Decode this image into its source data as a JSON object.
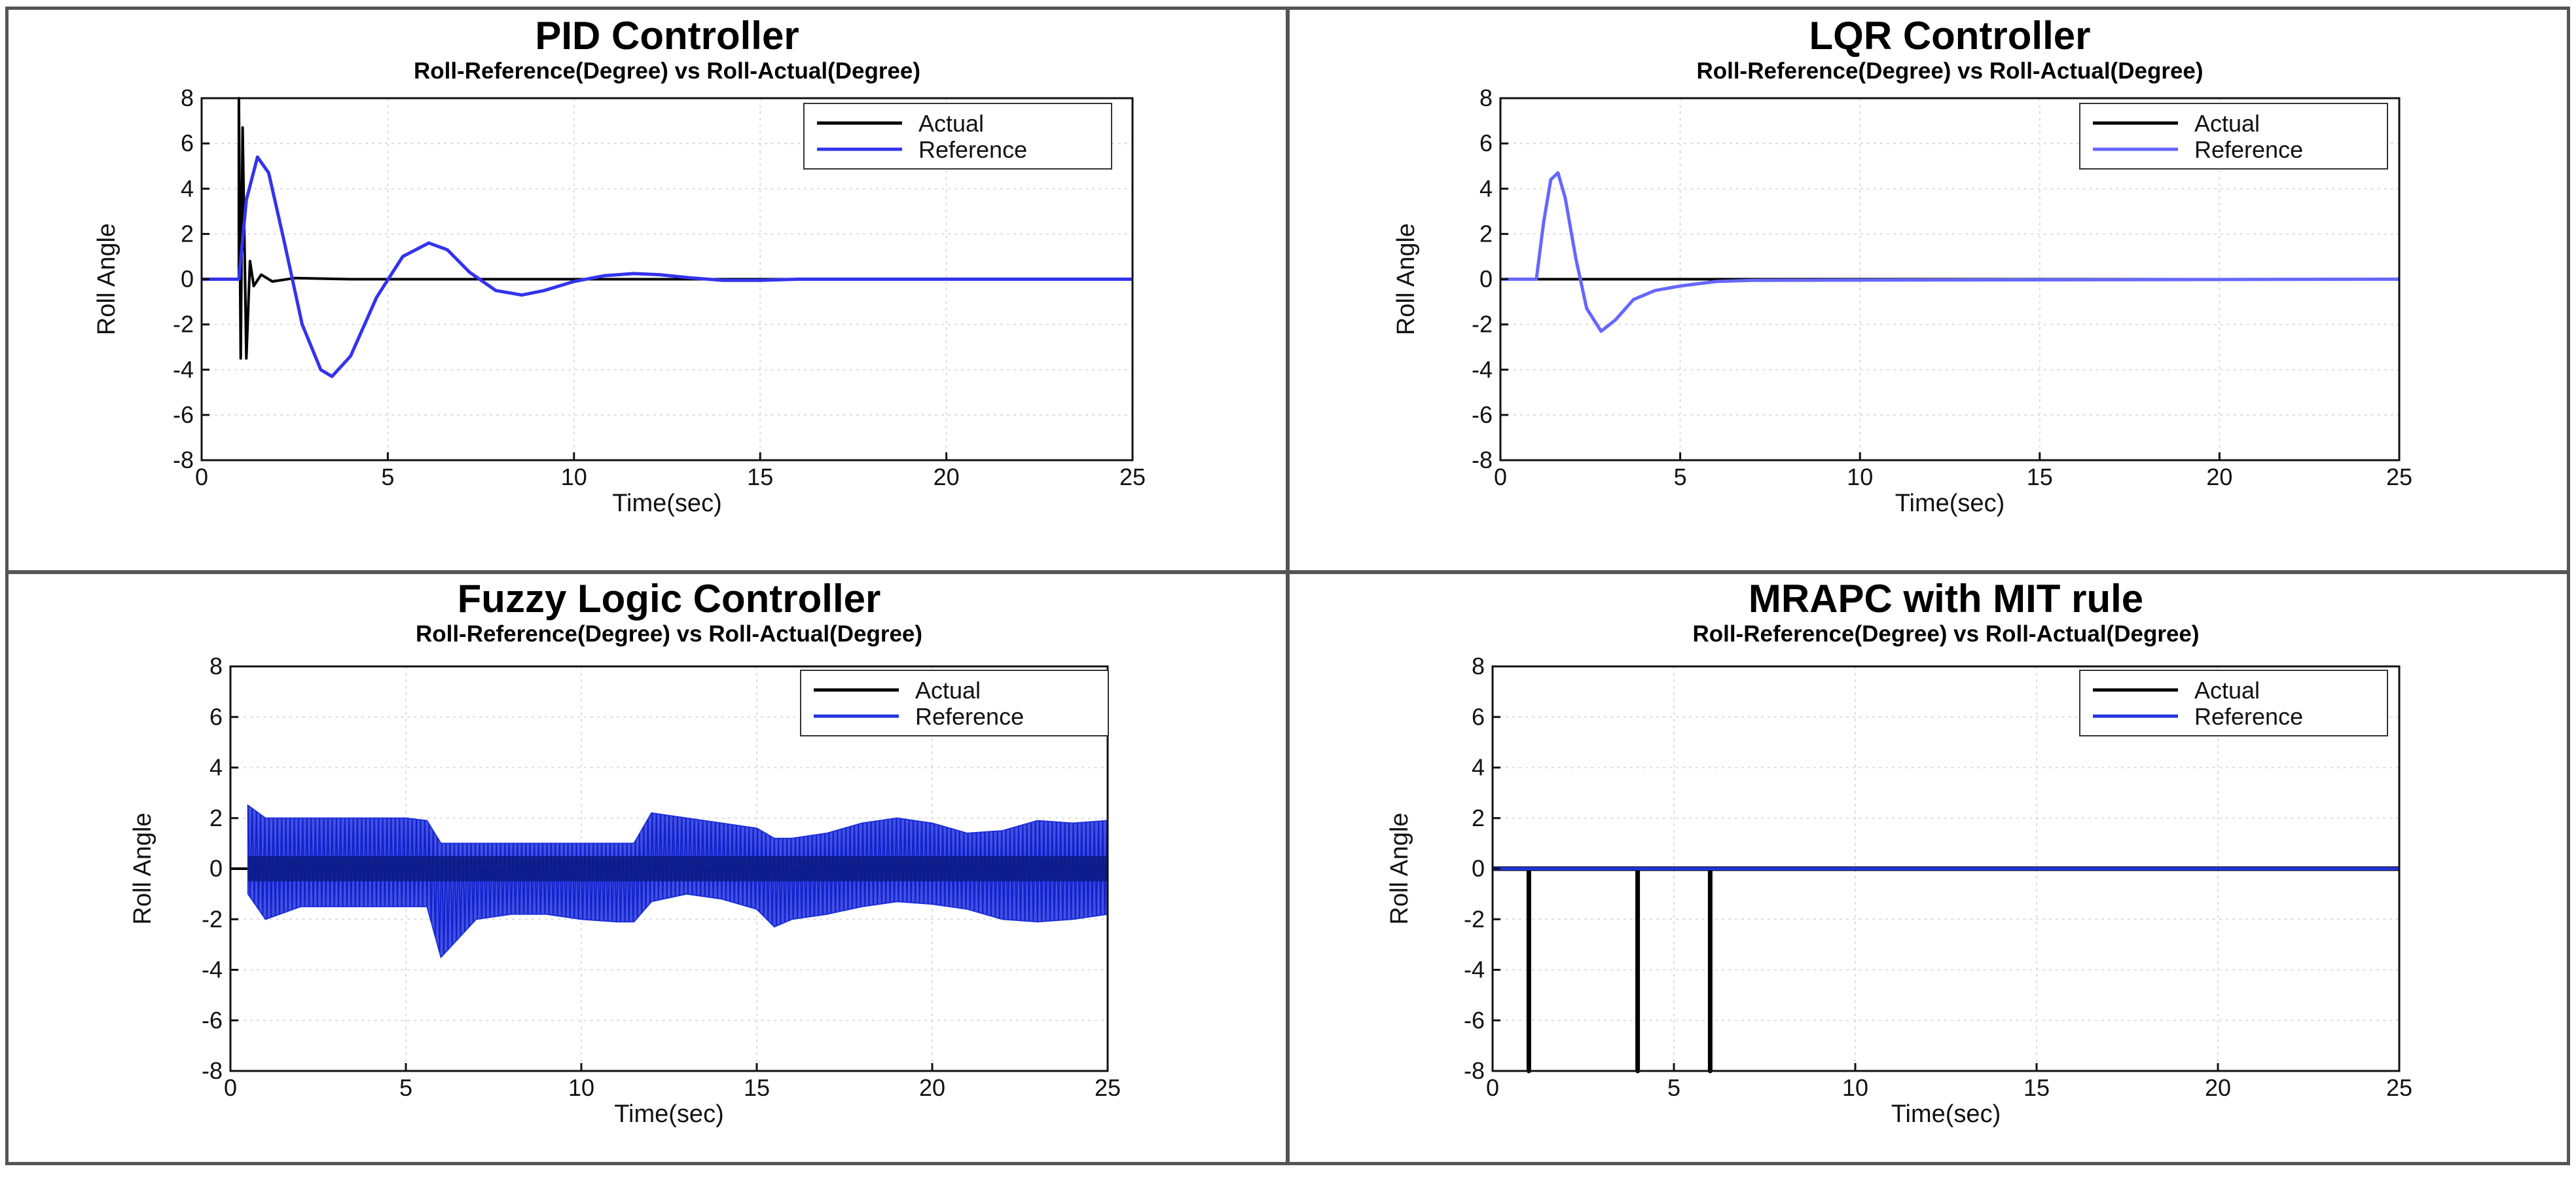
{
  "chart_data": [
    {
      "id": "pid",
      "type": "line",
      "title": "PID Controller",
      "subtitle": "Roll-Reference(Degree) vs Roll-Actual(Degree)",
      "xlabel": "Time(sec)",
      "ylabel": "Roll Angle",
      "xlim": [
        0,
        25
      ],
      "ylim": [
        -8,
        8
      ],
      "xticks": [
        "0",
        "5",
        "10",
        "15",
        "20",
        "25"
      ],
      "yticks": [
        "8",
        "6",
        "4",
        "2",
        "0",
        "-2",
        "-4",
        "-6",
        "-8"
      ],
      "grid": true,
      "legend": "top-right",
      "series": [
        {
          "name": "Actual",
          "color": "#000000",
          "x": [
            0,
            1.0,
            1.0,
            1.05,
            1.1,
            1.2,
            1.3,
            1.4,
            1.6,
            1.9,
            2.5,
            4,
            25
          ],
          "y": [
            0,
            0,
            8,
            -3.5,
            6.7,
            -3.5,
            0.8,
            -0.3,
            0.2,
            -0.1,
            0.05,
            0,
            0
          ]
        },
        {
          "name": "Reference",
          "color": "#3333ee",
          "x": [
            0,
            1.0,
            1.2,
            1.5,
            1.8,
            2.2,
            2.7,
            3.2,
            3.5,
            4.0,
            4.7,
            5.4,
            6.1,
            6.6,
            7.2,
            7.9,
            8.6,
            9.2,
            10,
            10.8,
            11.6,
            12.3,
            13.2,
            14.0,
            15,
            16,
            17,
            25
          ],
          "y": [
            0,
            0,
            3.5,
            5.4,
            4.7,
            1.8,
            -2.0,
            -4.0,
            -4.3,
            -3.4,
            -0.8,
            1.0,
            1.6,
            1.3,
            0.3,
            -0.5,
            -0.7,
            -0.5,
            -0.1,
            0.15,
            0.25,
            0.2,
            0.05,
            -0.05,
            -0.05,
            0,
            0,
            0
          ]
        }
      ]
    },
    {
      "id": "lqr",
      "type": "line",
      "title": "LQR Controller",
      "subtitle": "Roll-Reference(Degree) vs Roll-Actual(Degree)",
      "xlabel": "Time(sec)",
      "ylabel": "Roll Angle",
      "xlim": [
        0,
        25
      ],
      "ylim": [
        -8,
        8
      ],
      "xticks": [
        "0",
        "5",
        "10",
        "15",
        "20",
        "25"
      ],
      "yticks": [
        "8",
        "6",
        "4",
        "2",
        "0",
        "-2",
        "-4",
        "-6",
        "-8"
      ],
      "grid": true,
      "legend": "top-right",
      "series": [
        {
          "name": "Actual",
          "color": "#000000",
          "x": [
            0,
            25
          ],
          "y": [
            0,
            0
          ]
        },
        {
          "name": "Reference",
          "color": "#6666ff",
          "x": [
            0,
            1.0,
            1.2,
            1.4,
            1.6,
            1.8,
            2.1,
            2.4,
            2.8,
            3.2,
            3.7,
            4.3,
            5.0,
            6.0,
            7.0,
            25
          ],
          "y": [
            0,
            0,
            2.5,
            4.4,
            4.7,
            3.6,
            0.9,
            -1.3,
            -2.3,
            -1.8,
            -0.9,
            -0.5,
            -0.3,
            -0.1,
            -0.05,
            0
          ]
        }
      ]
    },
    {
      "id": "fuzzy",
      "type": "line",
      "title": "Fuzzy Logic Controller",
      "subtitle": "Roll-Reference(Degree) vs Roll-Actual(Degree)",
      "xlabel": "Time(sec)",
      "ylabel": "Roll Angle",
      "xlim": [
        0,
        25
      ],
      "ylim": [
        -8,
        8
      ],
      "xticks": [
        "0",
        "5",
        "10",
        "15",
        "20",
        "25"
      ],
      "yticks": [
        "8",
        "6",
        "4",
        "2",
        "0",
        "-2",
        "-4",
        "-6",
        "-8"
      ],
      "grid": true,
      "legend": "top-right",
      "series": [
        {
          "name": "Actual",
          "color": "#000000",
          "x": [
            0,
            25
          ],
          "y": [
            0,
            0
          ]
        },
        {
          "name": "Reference",
          "color": "#2233dd",
          "x": [
            0.5,
            1,
            2,
            3,
            4,
            5,
            5.6,
            6,
            7,
            8,
            9,
            10,
            11,
            11.5,
            12,
            13,
            14,
            15,
            15.5,
            16,
            17,
            18,
            19,
            20,
            21,
            22,
            23,
            24,
            25
          ],
          "upper": [
            2.5,
            2.0,
            2.0,
            2.0,
            2.0,
            2.0,
            1.9,
            1.0,
            1.0,
            1.0,
            1.0,
            1.0,
            1.0,
            1.0,
            2.2,
            2.0,
            1.8,
            1.6,
            1.2,
            1.2,
            1.4,
            1.8,
            2.0,
            1.8,
            1.4,
            1.5,
            1.9,
            1.8,
            1.9
          ],
          "lower": [
            -1.0,
            -2.0,
            -1.5,
            -1.5,
            -1.5,
            -1.5,
            -1.5,
            -3.5,
            -2.0,
            -1.8,
            -1.8,
            -2.0,
            -2.1,
            -2.1,
            -1.3,
            -1.0,
            -1.2,
            -1.6,
            -2.3,
            -2.0,
            -1.8,
            -1.5,
            -1.3,
            -1.4,
            -1.6,
            -2.0,
            -2.1,
            -2.0,
            -1.8
          ]
        }
      ]
    },
    {
      "id": "mrapc",
      "type": "line",
      "title": "MRAPC with MIT rule",
      "subtitle": "Roll-Reference(Degree) vs Roll-Actual(Degree)",
      "xlabel": "Time(sec)",
      "ylabel": "Roll Angle",
      "xlim": [
        0,
        25
      ],
      "ylim": [
        -8,
        8
      ],
      "xticks": [
        "0",
        "5",
        "10",
        "15",
        "20",
        "25"
      ],
      "yticks": [
        "8",
        "6",
        "4",
        "2",
        "0",
        "-2",
        "-4",
        "-6",
        "-8"
      ],
      "grid": true,
      "legend": "top-right",
      "series": [
        {
          "name": "Actual",
          "color": "#000000",
          "x": [
            0,
            1.0,
            1.0,
            1.0,
            4.0,
            4.0,
            4.0,
            6.0,
            6.0,
            6.0,
            25
          ],
          "y": [
            0,
            0,
            -8,
            0,
            0,
            -8,
            0,
            0,
            -8,
            0,
            0
          ]
        },
        {
          "name": "Reference",
          "color": "#2233dd",
          "x": [
            0,
            25
          ],
          "y": [
            0,
            0
          ]
        }
      ]
    }
  ]
}
